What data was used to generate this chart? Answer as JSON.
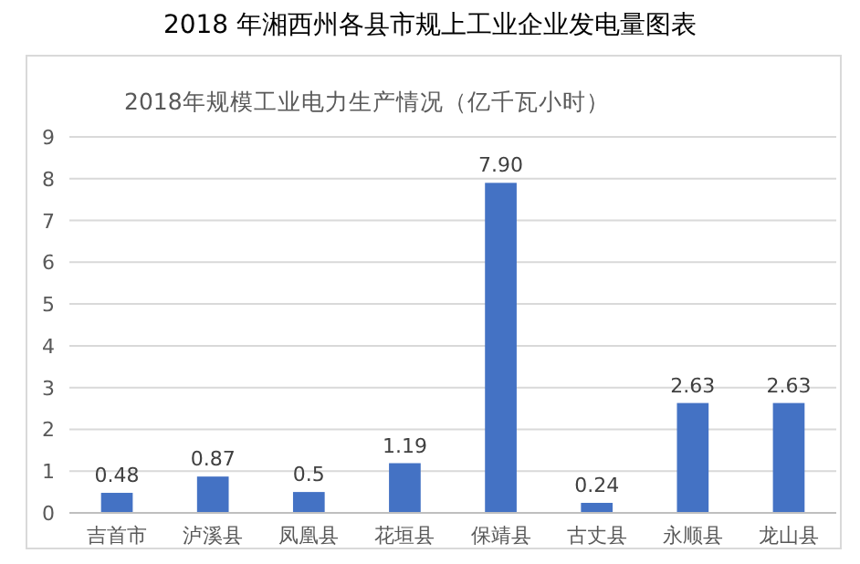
{
  "chart_data": {
    "type": "bar",
    "title": "2018 年湘西州各县市规上工业企业发电量图表",
    "subtitle": "2018年规模工业电力生产情况（亿千瓦小时）",
    "categories": [
      "吉首市",
      "泸溪县",
      "凤凰县",
      "花垣县",
      "保靖县",
      "古丈县",
      "永顺县",
      "龙山县"
    ],
    "values": [
      0.48,
      0.87,
      0.5,
      1.19,
      7.9,
      0.24,
      2.63,
      2.63
    ],
    "value_labels": [
      "0.48",
      "0.87",
      "0.5",
      "1.19",
      "7.90",
      "0.24",
      "2.63",
      "2.63"
    ],
    "color": "#4472c4",
    "ylim": [
      0,
      9
    ],
    "yticks": [
      0,
      1,
      2,
      3,
      4,
      5,
      6,
      7,
      8,
      9
    ],
    "grid": "y"
  }
}
